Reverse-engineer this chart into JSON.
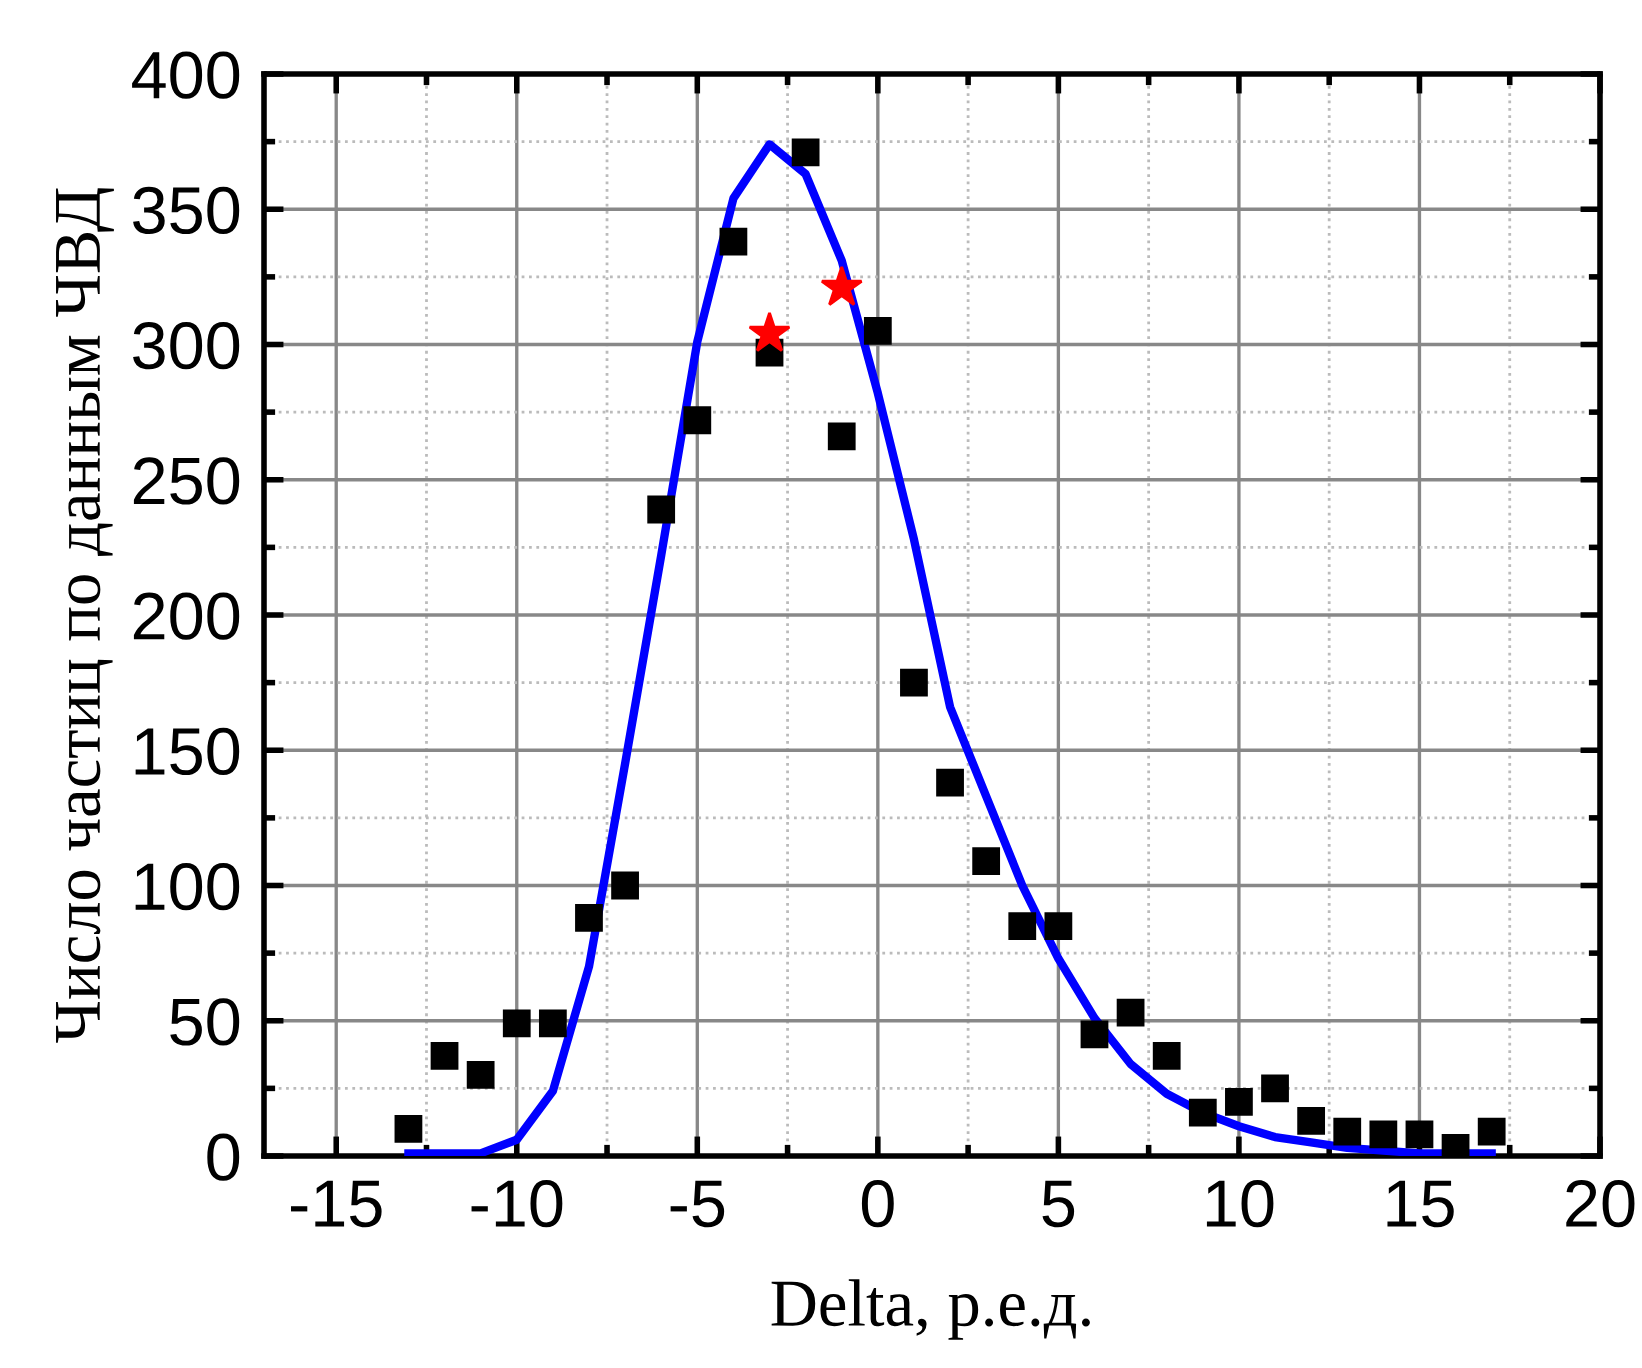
{
  "chart_data": {
    "type": "scatter",
    "xlabel": "Delta, р.е.д.",
    "ylabel": "Число частиц по данным ЧВД",
    "xlim": [
      -17,
      20
    ],
    "ylim": [
      0,
      400
    ],
    "xticks": [
      -15,
      {
        "value": -12.5,
        "label": null
      },
      -10,
      {
        "value": -7.5,
        "label": null
      },
      -5,
      {
        "value": -2.5,
        "label": null
      },
      0,
      {
        "value": 2.5,
        "label": null
      },
      5,
      {
        "value": 7.5,
        "label": null
      },
      10,
      {
        "value": 12.5,
        "label": null
      },
      15,
      {
        "value": 17.5,
        "label": null
      },
      20
    ],
    "yticks": [
      0,
      {
        "value": 25,
        "label": null
      },
      50,
      {
        "value": 75,
        "label": null
      },
      100,
      {
        "value": 125,
        "label": null
      },
      150,
      {
        "value": 175,
        "label": null
      },
      200,
      {
        "value": 225,
        "label": null
      },
      250,
      {
        "value": 275,
        "label": null
      },
      300,
      {
        "value": 325,
        "label": null
      },
      350,
      {
        "value": 375,
        "label": null
      },
      400
    ],
    "grid": true,
    "series": [
      {
        "marker": "square",
        "color": "#000000",
        "x": [
          -13,
          -12,
          -11,
          -10,
          -9,
          -8,
          -7,
          -6,
          -5,
          -4,
          -3,
          -2,
          -1,
          0,
          1,
          2,
          3,
          4,
          5,
          6,
          7,
          8,
          9,
          10,
          11,
          12,
          13,
          14,
          15,
          16,
          17
        ],
        "values": [
          10,
          37,
          30,
          49,
          49,
          88,
          100,
          239,
          272,
          338,
          297,
          371,
          266,
          305,
          175,
          138,
          109,
          85,
          85,
          45,
          53,
          37,
          16,
          20,
          25,
          13,
          9,
          8,
          8,
          3,
          9
        ]
      },
      {
        "type": "line",
        "marker": "none",
        "line_style": "solid",
        "color": "#0000ff",
        "x": [
          -13,
          -12,
          -11,
          -10,
          -9,
          -8,
          -7,
          -6,
          -5,
          -4,
          -3,
          -2,
          -1,
          0,
          1,
          2,
          3,
          4,
          5,
          6,
          7,
          8,
          9,
          10,
          11,
          12,
          13,
          14,
          15,
          16,
          17
        ],
        "values": [
          1,
          1,
          1,
          6,
          24,
          70,
          145,
          222,
          301,
          354,
          374,
          363,
          331,
          282,
          228,
          166,
          133,
          100,
          73,
          51,
          34,
          23,
          16,
          11,
          7,
          5,
          3,
          2,
          1,
          1,
          1
        ]
      },
      {
        "type": "scatter",
        "marker": "star",
        "color": "#ff0000",
        "x": [
          -3,
          -1
        ],
        "values": [
          304,
          321
        ]
      }
    ]
  }
}
